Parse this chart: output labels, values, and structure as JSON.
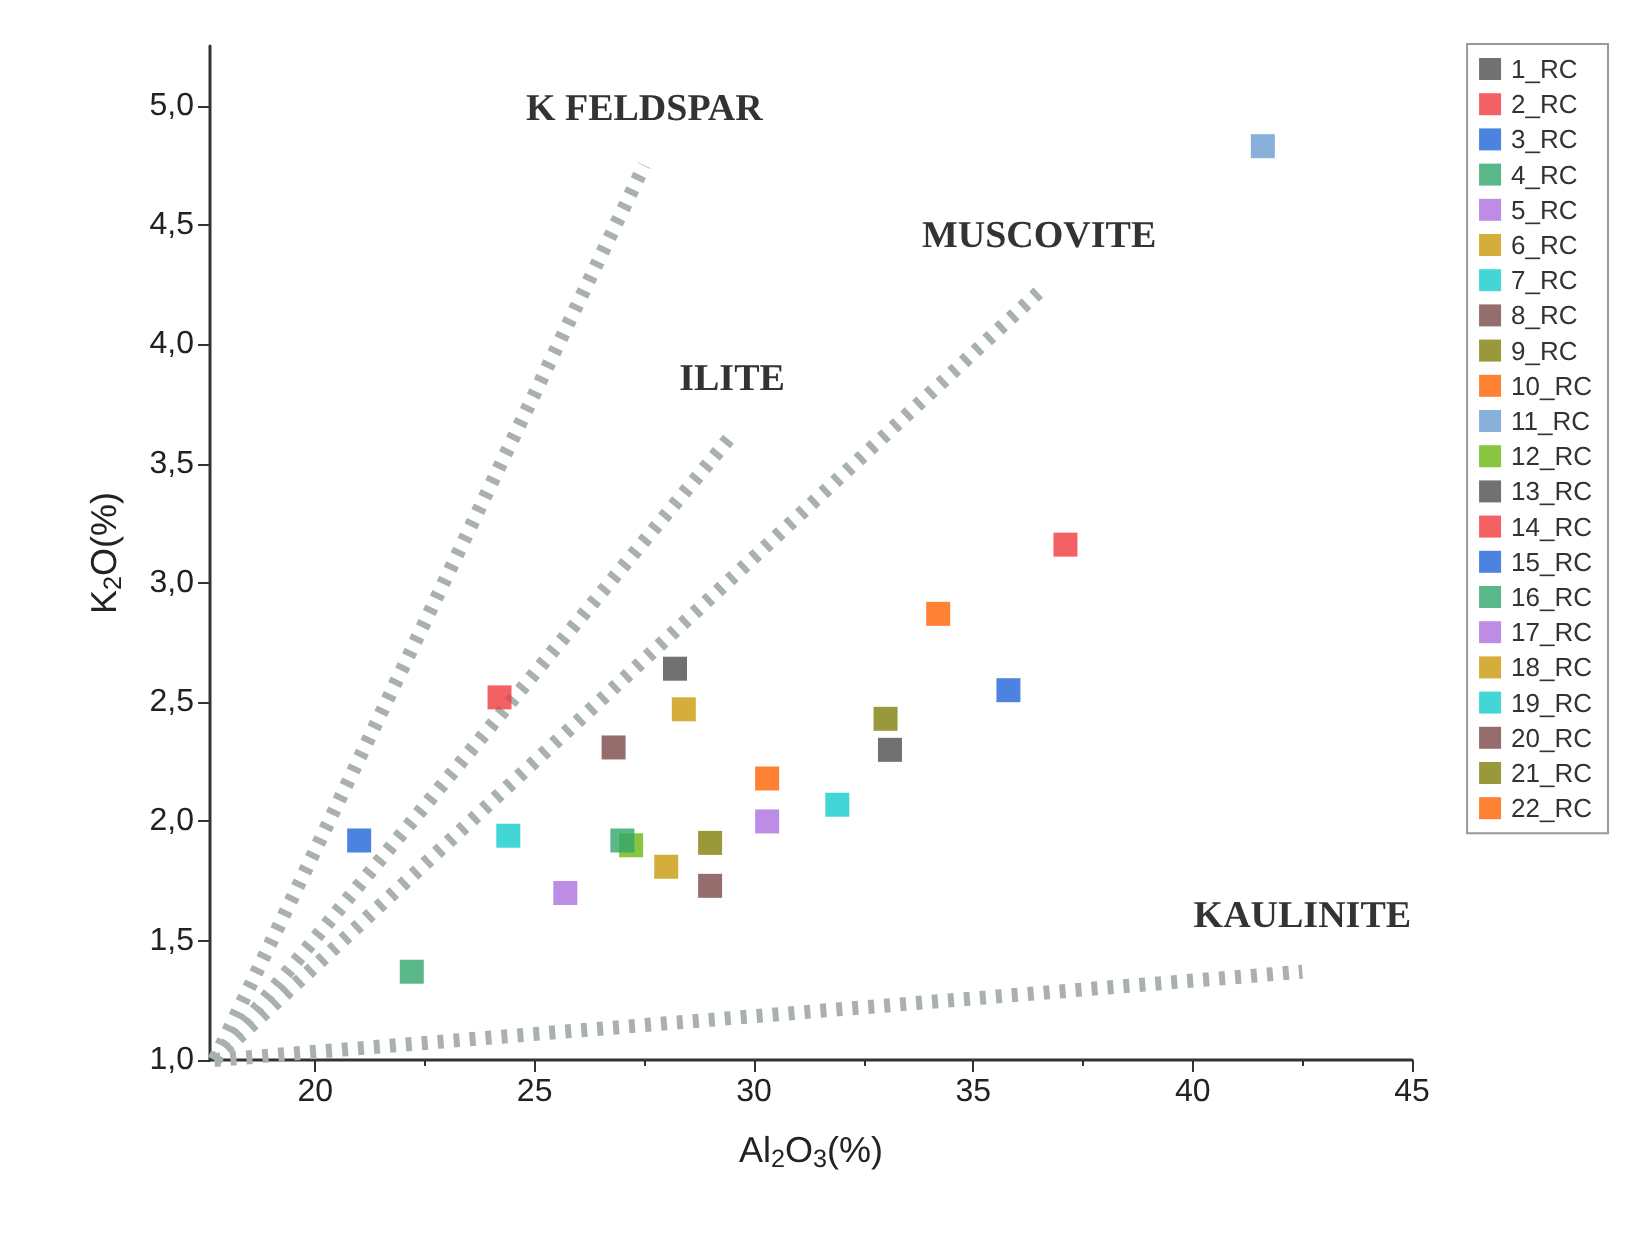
{
  "chart_data": {
    "type": "scatter",
    "xlabel": "Al$_{2}$O$_{3}$(%)",
    "ylabel": "K$_{2}$O(%)",
    "xlim": [
      17.6,
      45
    ],
    "xticks": [
      20,
      25,
      30,
      35,
      40,
      45
    ],
    "ylim": [
      1,
      5.25
    ],
    "yticks": [
      {
        "value": 1,
        "label": "1,0"
      },
      {
        "value": 1.5,
        "label": "1,5"
      },
      {
        "value": 2,
        "label": "2,0"
      },
      {
        "value": 2.5,
        "label": "2,5"
      },
      {
        "value": 3,
        "label": "3,0"
      },
      {
        "value": 3.5,
        "label": "3,5"
      },
      {
        "value": 4,
        "label": "4,0"
      },
      {
        "value": 4.5,
        "label": "4,5"
      },
      {
        "value": 5,
        "label": "5,0"
      }
    ],
    "grid": false,
    "legend": "right",
    "marker": "square",
    "annotations": [
      "K FELDSPAR",
      "ILITE",
      "MUSCOVITE",
      "KAULINITE"
    ],
    "series": [
      {
        "name": "1_RC",
        "color": "#4d4d4d",
        "x": [
          28.2
        ],
        "values": [
          2.64
        ]
      },
      {
        "name": "2_RC",
        "color": "#f0393f",
        "x": [
          24.2
        ],
        "values": [
          2.52
        ]
      },
      {
        "name": "3_RC",
        "color": "#1f63d8",
        "x": [
          21.0
        ],
        "values": [
          1.92
        ]
      },
      {
        "name": "4_RC",
        "color": "#2fa56b",
        "x": [
          22.2
        ],
        "values": [
          1.37
        ]
      },
      {
        "name": "5_RC",
        "color": "#ad6fdd",
        "x": [
          25.7
        ],
        "values": [
          1.7
        ]
      },
      {
        "name": "6_RC",
        "color": "#c9980a",
        "x": [
          28.4
        ],
        "values": [
          2.47
        ]
      },
      {
        "name": "7_RC",
        "color": "#14cccc",
        "x": [
          24.4
        ],
        "values": [
          1.94
        ]
      },
      {
        "name": "8_RC",
        "color": "#7a4848",
        "x": [
          26.8
        ],
        "values": [
          2.31
        ]
      },
      {
        "name": "9_RC",
        "color": "#7f7f0a",
        "x": [
          29.0
        ],
        "values": [
          1.91
        ]
      },
      {
        "name": "10_RC",
        "color": "#ff6100",
        "x": [
          30.3
        ],
        "values": [
          2.18
        ]
      },
      {
        "name": "11_RC",
        "color": "#6b9bd2",
        "x": [
          41.6
        ],
        "values": [
          4.83
        ]
      },
      {
        "name": "12_RC",
        "color": "#6ab80f",
        "x": [
          27.2
        ],
        "values": [
          1.9
        ]
      },
      {
        "name": "13_RC",
        "color": "#4d4d4d",
        "x": [
          33.1
        ],
        "values": [
          2.3
        ]
      },
      {
        "name": "14_RC",
        "color": "#f0393f",
        "x": [
          37.1
        ],
        "values": [
          3.16
        ]
      },
      {
        "name": "15_RC",
        "color": "#1f63d8",
        "x": [
          35.8
        ],
        "values": [
          2.55
        ]
      },
      {
        "name": "16_RC",
        "color": "#2fa56b",
        "x": [
          27.0
        ],
        "values": [
          1.92
        ]
      },
      {
        "name": "17_RC",
        "color": "#ad6fdd",
        "x": [
          30.3
        ],
        "values": [
          2.0
        ]
      },
      {
        "name": "18_RC",
        "color": "#c9980a",
        "x": [
          28.0
        ],
        "values": [
          1.81
        ]
      },
      {
        "name": "19_RC",
        "color": "#14cccc",
        "x": [
          31.9
        ],
        "values": [
          2.07
        ]
      },
      {
        "name": "20_RC",
        "color": "#7a4848",
        "x": [
          29.0
        ],
        "values": [
          1.73
        ]
      },
      {
        "name": "21_RC",
        "color": "#7f7f0a",
        "x": [
          33.0
        ],
        "values": [
          2.43
        ]
      },
      {
        "name": "22_RC",
        "color": "#ff6100",
        "x": [
          34.2
        ],
        "values": [
          2.87
        ]
      },
      {
        "type": "line",
        "color": "#a9b1ad",
        "x": [
          17.7,
          27.5
        ],
        "values": [
          1.0,
          4.75
        ],
        "line_style": "dotted",
        "marker": "none"
      },
      {
        "type": "line",
        "color": "#a9b1ad",
        "x": [
          17.7,
          29.5
        ],
        "values": [
          1.0,
          3.62
        ],
        "line_style": "dotted",
        "marker": "none"
      },
      {
        "type": "line",
        "color": "#a9b1ad",
        "x": [
          17.7,
          36.5
        ],
        "values": [
          1.0,
          4.22
        ],
        "line_style": "dotted",
        "marker": "none"
      },
      {
        "type": "line",
        "color": "#a9b1ad",
        "x": [
          17.7,
          42.5
        ],
        "values": [
          1.0,
          1.37
        ],
        "line_style": "dotted",
        "marker": "none"
      }
    ]
  }
}
